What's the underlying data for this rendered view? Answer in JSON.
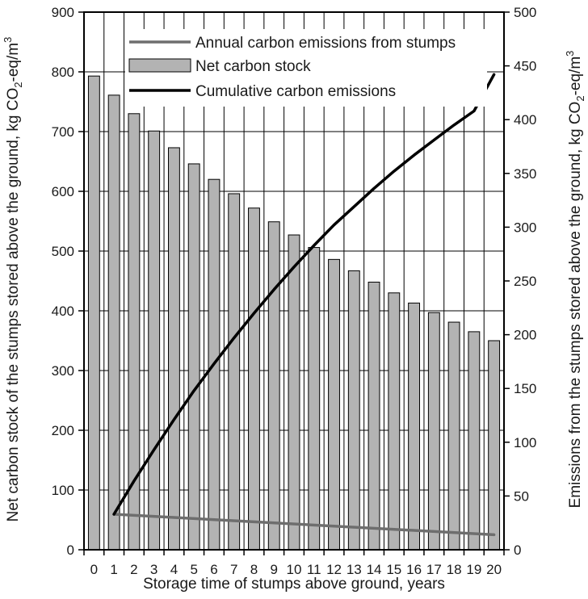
{
  "chart_data": {
    "type": "bar",
    "categories": [
      "0",
      "1",
      "2",
      "3",
      "4",
      "5",
      "6",
      "7",
      "8",
      "9",
      "10",
      "11",
      "12",
      "13",
      "14",
      "15",
      "16",
      "17",
      "18",
      "19",
      "20"
    ],
    "series": [
      {
        "name": "Net carbon stock",
        "type": "bar",
        "axis": "left",
        "color": "#b3b3b3",
        "values": [
          793,
          761,
          730,
          701,
          673,
          646,
          620,
          596,
          572,
          549,
          527,
          506,
          486,
          467,
          448,
          430,
          413,
          397,
          381,
          365,
          350
        ]
      },
      {
        "name": "Annual carbon emissions from stumps",
        "type": "line",
        "axis": "right",
        "color": "#6e6e6e",
        "x": [
          1,
          20
        ],
        "values": [
          33,
          14
        ]
      },
      {
        "name": "Cumulative carbon emissions",
        "type": "line",
        "axis": "right",
        "color": "#000000",
        "x": [
          1,
          2,
          3,
          4,
          5,
          6,
          7,
          8,
          9,
          10,
          11,
          12,
          13,
          14,
          15,
          16,
          17,
          18,
          19,
          20
        ],
        "values": [
          33,
          64,
          93,
          121,
          148,
          173,
          197,
          220,
          242,
          263,
          283,
          302,
          319,
          336,
          352,
          367,
          381,
          395,
          408,
          442
        ]
      }
    ],
    "ylabel_html": [
      "Net carbon stock of the stumps stored above the ground, kg CO",
      "2",
      "-eq/m",
      "3"
    ],
    "y2label_parts": [
      "Emissions from the stumps stored above the ground, kg CO",
      "2",
      "-eq/m",
      "3"
    ],
    "xlabel": "Storage time of stumps above ground, years",
    "ylim": [
      0,
      900
    ],
    "y2lim": [
      0,
      500
    ],
    "yticks": [
      "0",
      "100",
      "200",
      "300",
      "400",
      "500",
      "600",
      "700",
      "800",
      "900"
    ],
    "y2ticks": [
      "0",
      "50",
      "100",
      "150",
      "200",
      "250",
      "300",
      "350",
      "400",
      "450",
      "500"
    ],
    "grid": true,
    "legend_position": "top",
    "legend": [
      "Annual carbon emissions from stumps",
      "Net carbon stock",
      "Cumulative carbon emissions"
    ]
  }
}
